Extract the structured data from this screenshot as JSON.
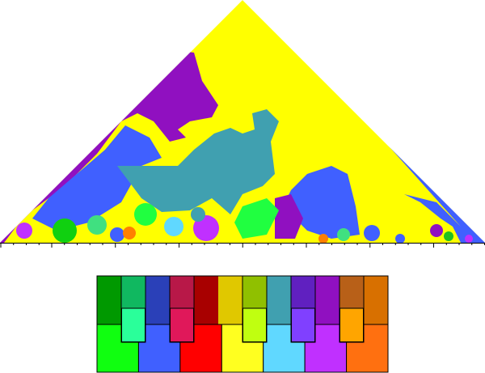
{
  "keyboard": {
    "top": [
      "#009900",
      "#10b860",
      "#2a40b8",
      "#b81848",
      "#a80000",
      "#e0c800",
      "#90c000",
      "#40a0b0",
      "#6020c0",
      "#9010c0",
      "#b86018",
      "#d87000"
    ],
    "black_keys": [
      {
        "column": 1,
        "color": "#2aff9a"
      },
      {
        "column": 3,
        "color": "#e0185a"
      },
      {
        "column": 6,
        "color": "#c0ff10"
      },
      {
        "column": 8,
        "color": "#8040ff"
      },
      {
        "column": 10,
        "color": "#ffa500"
      }
    ],
    "white": [
      "#10ff10",
      "#4060ff",
      "#ff0000",
      "#ffff20",
      "#60d8ff",
      "#c030ff",
      "#ff7010"
    ]
  }
}
